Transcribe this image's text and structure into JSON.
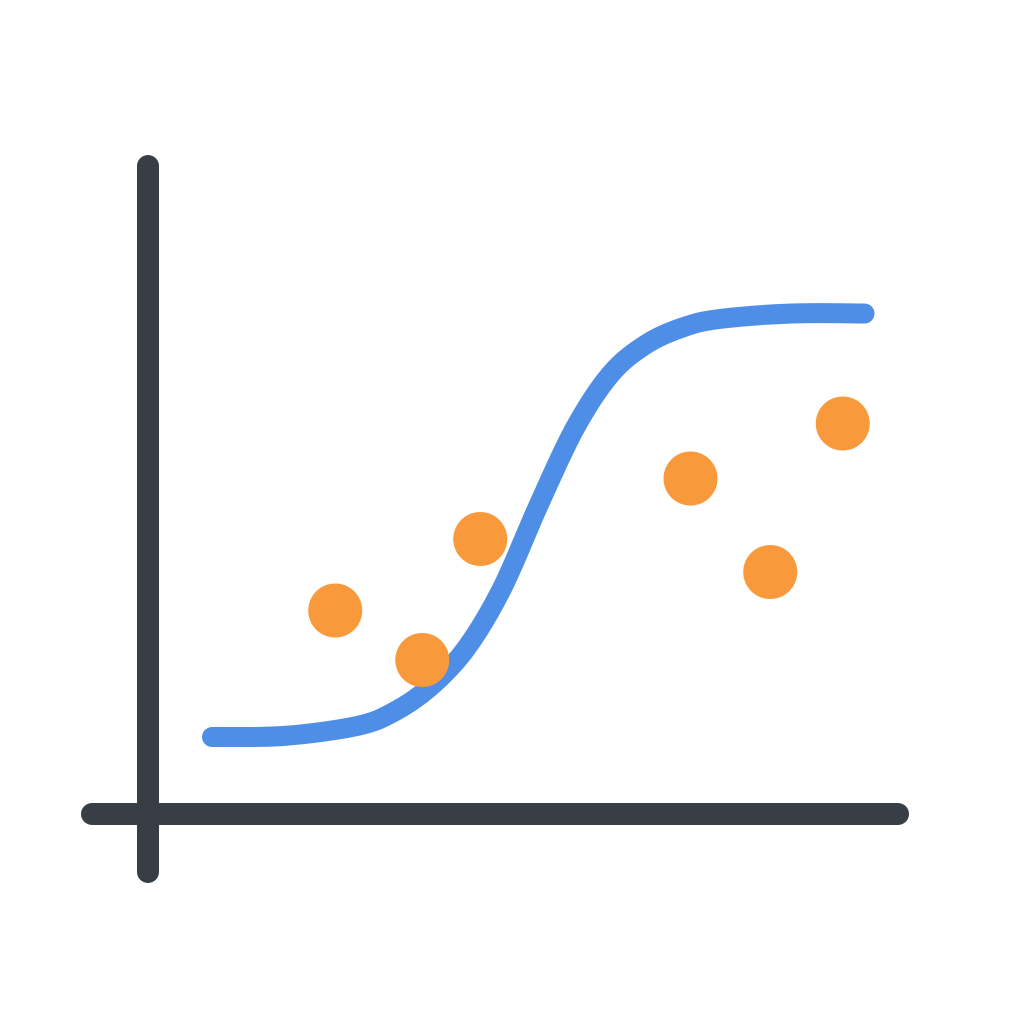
{
  "chart_data": {
    "type": "scatter",
    "title": "",
    "xlabel": "",
    "ylabel": "",
    "xlim": [
      0,
      10
    ],
    "ylim": [
      0,
      10
    ],
    "grid": false,
    "legend": "none",
    "series": [
      {
        "kind": "line",
        "color": "#4f8ee6",
        "x": [
          0,
          1,
          2,
          2.5,
          3,
          3.5,
          4,
          4.5,
          5,
          5.5,
          6,
          6.5,
          7,
          8,
          9
        ],
        "y": [
          1.4,
          1.42,
          1.6,
          1.85,
          2.3,
          3.0,
          4.1,
          5.6,
          7.0,
          8.0,
          8.55,
          8.85,
          9.0,
          9.1,
          9.1
        ]
      },
      {
        "kind": "scatter",
        "color": "#f89a3c",
        "x": [
          1.7,
          2.9,
          3.7,
          6.6,
          7.7,
          8.7
        ],
        "y": [
          3.7,
          2.8,
          5.0,
          6.1,
          4.4,
          7.1
        ]
      }
    ]
  },
  "colors": {
    "axis": "#373e45",
    "curve": "#4f8ee6",
    "points": "#f89a3c",
    "background": "#ffffff"
  }
}
